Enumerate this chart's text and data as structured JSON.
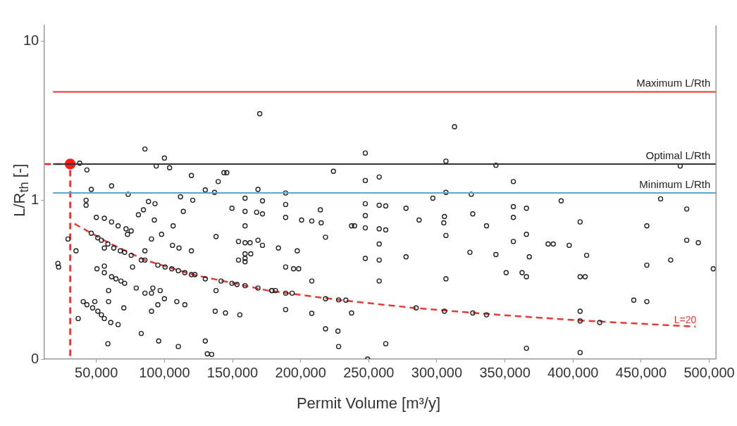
{
  "chart_data": {
    "type": "scatter",
    "xlabel": "Permit Volume [m³/y]",
    "ylabel": "L/R$_{th}$ [-]",
    "log": "y",
    "grid": false,
    "legend": false,
    "marker": "circle",
    "xlim": [
      12000,
      505000
    ],
    "ylim": [
      0.1,
      12.6
    ],
    "xticks": [
      {
        "value": 50000,
        "label": "50,000"
      },
      {
        "value": 100000,
        "label": "100,000"
      },
      {
        "value": 150000,
        "label": "150,000"
      },
      {
        "value": 200000,
        "label": "200,000"
      },
      {
        "value": 250000,
        "label": "250,000"
      },
      {
        "value": 300000,
        "label": "300,000"
      },
      {
        "value": 350000,
        "label": "350,000"
      },
      {
        "value": 400000,
        "label": "400,000"
      },
      {
        "value": 450000,
        "label": "450,000"
      },
      {
        "value": 500000,
        "label": "500,000"
      }
    ],
    "yticks": [
      {
        "value": 0.1,
        "label": "0"
      },
      1,
      10
    ],
    "ref_lines": [
      {
        "axis": "y",
        "value": 4.8,
        "label": "Maximum L/Rth",
        "color": "#e8322b"
      },
      {
        "axis": "y",
        "value": 1.69,
        "label": "Optimal L/Rth",
        "color": "#333333"
      },
      {
        "axis": "y",
        "value": 1.11,
        "label": "Minimum L/Rth",
        "color": "#5aa6d0"
      }
    ],
    "annotations": [
      "L=20"
    ],
    "series": [
      {
        "type": "scatter",
        "color": "#222222",
        "x": [
          170000,
          85700,
          100000,
          37750,
          94000,
          103800,
          43100,
          119800,
          143700,
          145800,
          139500,
          61200,
          46300,
          130000,
          136800,
          168700,
          73400,
          42500,
          42500,
          88300,
          93100,
          111800,
          120800,
          159200,
          172000,
          80900,
          84600,
          92600,
          113900,
          149600,
          159200,
          167700,
          172000,
          50000,
          55900,
          61200,
          66000,
          71800,
          72900,
          75600,
          106400,
          159200,
          29200,
          46300,
          51100,
          53700,
          90500,
          97900,
          137900,
          154400,
          159200,
          162900,
          168700,
          172000,
          35100,
          55900,
          58500,
          62800,
          67600,
          70800,
          75600,
          85700,
          83000,
          85700,
          105900,
          110700,
          119800,
          159200,
          159200,
          163400,
          154400,
          159200,
          21800,
          22300,
          76600,
          95200,
          100500,
          105400,
          110200,
          115000,
          119800,
          122400,
          50500,
          55900,
          55900,
          61200,
          64400,
          68100,
          70800,
          130000,
          141600,
          149600,
          153300,
          159200,
          168700,
          178900,
          59000,
          79300,
          85700,
          91500,
          90500,
          96900,
          100000,
          137900,
          40400,
          43100,
          48900,
          47300,
          51100,
          53700,
          55900,
          59000,
          60600,
          66000,
          70200,
          90500,
          95200,
          109100,
          115000,
          137300,
          144800,
          155400,
          36700,
          83000,
          95800,
          110200,
          58500,
          130000,
          131500,
          134700,
          313000,
          247500,
          306700,
          343400,
          224100,
          247500,
          257700,
          189000,
          306700,
          325300,
          297100,
          189000,
          247500,
          257700,
          262500,
          277400,
          214500,
          189000,
          200700,
          208200,
          215100,
          247500,
          247500,
          257700,
          262500,
          237400,
          239600,
          287000,
          305600,
          305100,
          306700,
          326400,
          336500,
          218300,
          257700,
          183700,
          197500,
          324300,
          343400,
          247500,
          257700,
          277400,
          189000,
          194800,
          198600,
          208200,
          257700,
          306700,
          178900,
          181500,
          189000,
          193800,
          218300,
          227900,
          233200,
          284800,
          305600,
          326400,
          336500,
          189000,
          208200,
          237400,
          218300,
          227400,
          227900,
          262500,
          249200,
          478700,
          356200,
          391300,
          464300,
          356200,
          356200,
          356200,
          365800,
          365800,
          483500,
          405200,
          454200,
          483500,
          492000,
          381700,
          385500,
          397200,
          367900,
          410000,
          454200,
          471700,
          503000,
          350900,
          362600,
          365800,
          405200,
          408900,
          444600,
          454200,
          405200,
          405200,
          419600,
          365800,
          405200
        ],
        "values": [
          3.5,
          2.1,
          1.84,
          1.71,
          1.64,
          1.6,
          1.55,
          1.43,
          1.49,
          1.49,
          1.31,
          1.23,
          1.17,
          1.16,
          1.12,
          1.17,
          1.09,
          1.0,
          0.93,
          0.98,
          0.95,
          1.05,
          1.0,
          1.03,
          0.99,
          0.81,
          0.87,
          0.75,
          0.85,
          0.89,
          0.85,
          0.84,
          0.82,
          0.78,
          0.77,
          0.73,
          0.69,
          0.66,
          0.61,
          0.64,
          0.69,
          0.69,
          0.57,
          0.62,
          0.58,
          0.56,
          0.57,
          0.61,
          0.59,
          0.55,
          0.54,
          0.54,
          0.56,
          0.52,
          0.48,
          0.5,
          0.53,
          0.5,
          0.48,
          0.47,
          0.45,
          0.48,
          0.42,
          0.42,
          0.52,
          0.5,
          0.48,
          0.46,
          0.43,
          0.46,
          0.42,
          0.41,
          0.4,
          0.38,
          0.38,
          0.39,
          0.38,
          0.37,
          0.36,
          0.35,
          0.34,
          0.34,
          0.37,
          0.385,
          0.35,
          0.33,
          0.32,
          0.31,
          0.3,
          0.32,
          0.31,
          0.3,
          0.295,
          0.29,
          0.28,
          0.27,
          0.27,
          0.28,
          0.26,
          0.28,
          0.26,
          0.27,
          0.24,
          0.27,
          0.23,
          0.22,
          0.23,
          0.21,
          0.2,
          0.19,
          0.18,
          0.23,
          0.17,
          0.165,
          0.21,
          0.2,
          0.22,
          0.23,
          0.22,
          0.2,
          0.195,
          0.19,
          0.18,
          0.145,
          0.13,
          0.12,
          0.125,
          0.13,
          0.108,
          0.107,
          2.9,
          1.98,
          1.76,
          1.66,
          1.52,
          1.33,
          1.4,
          1.11,
          1.12,
          1.09,
          1.03,
          0.94,
          0.95,
          0.93,
          0.92,
          0.89,
          0.87,
          0.78,
          0.75,
          0.74,
          0.72,
          0.8,
          0.67,
          0.66,
          0.65,
          0.69,
          0.69,
          0.75,
          0.79,
          0.72,
          0.6,
          0.82,
          0.69,
          0.585,
          0.53,
          0.5,
          0.48,
          0.47,
          0.455,
          0.43,
          0.42,
          0.44,
          0.38,
          0.37,
          0.37,
          0.31,
          0.31,
          0.32,
          0.27,
          0.27,
          0.26,
          0.26,
          0.24,
          0.236,
          0.235,
          0.21,
          0.2,
          0.195,
          0.19,
          0.205,
          0.194,
          0.195,
          0.155,
          0.15,
          0.12,
          0.125,
          0.1,
          1.64,
          1.31,
          0.99,
          1.02,
          0.91,
          0.78,
          0.55,
          0.89,
          0.61,
          0.88,
          0.73,
          0.69,
          0.56,
          0.54,
          0.53,
          0.53,
          0.52,
          0.44,
          0.45,
          0.39,
          0.42,
          0.37,
          0.35,
          0.35,
          0.33,
          0.33,
          0.33,
          0.235,
          0.23,
          0.2,
          0.174,
          0.17,
          0.117,
          0.11
        ]
      },
      {
        "type": "line",
        "color": "#e53935",
        "line_style": "dashed",
        "marker": "none",
        "x": [
          34000,
          59000,
          85700,
          121000,
          176000,
          229500,
          282700,
          345000,
          405200,
          490000
        ],
        "values": [
          0.71,
          0.54,
          0.42,
          0.34,
          0.27,
          0.235,
          0.21,
          0.19,
          0.175,
          0.16
        ]
      },
      {
        "type": "line",
        "color": "#ff1a1a",
        "line_style": "dashed",
        "marker": "none",
        "x": [
          12000,
          30800,
          30800
        ],
        "values": [
          1.69,
          1.69,
          0.1
        ]
      },
      {
        "type": "scatter",
        "color": "#ff1a1a",
        "marker": "circle",
        "x": [
          30800
        ],
        "values": [
          1.69
        ]
      }
    ]
  }
}
